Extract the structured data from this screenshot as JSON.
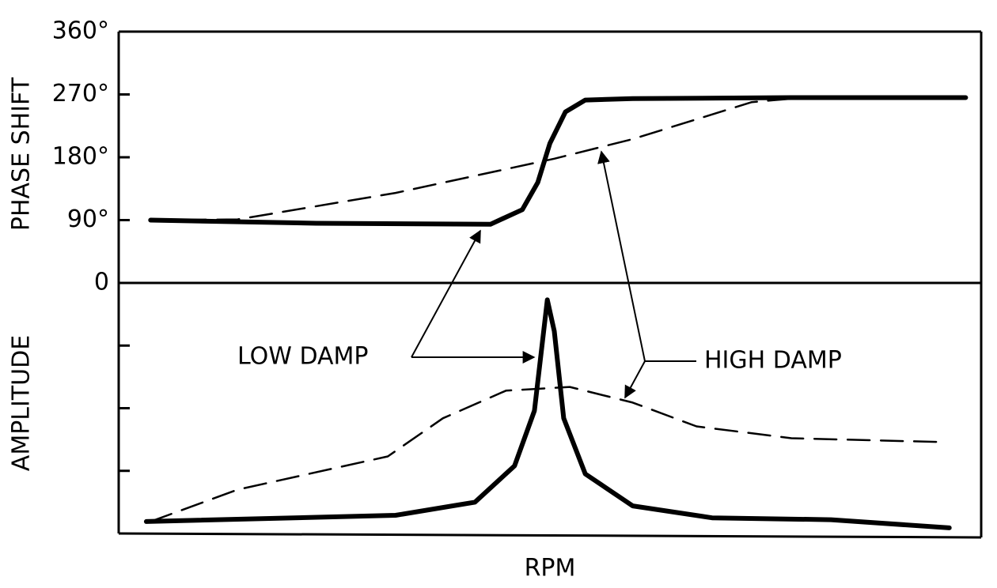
{
  "chart_data": [
    {
      "type": "line",
      "ylabel": "PHASE SHIFT",
      "xlim": [
        0,
        100
      ],
      "ylim": [
        0,
        360
      ],
      "yticks": [
        0,
        {
          "value": 90,
          "label": "90°"
        },
        {
          "value": 180,
          "label": "180°"
        },
        {
          "value": 270,
          "label": "270°"
        },
        {
          "value": 360,
          "label": "360°"
        }
      ],
      "ytick_labels": true,
      "series": [
        {
          "name": "LOW DAMP",
          "color": "#000000",
          "style": "solid",
          "x": [
            3.7,
            22.9,
            43.1,
            46.8,
            48.6,
            50,
            51.8,
            54.1,
            59.6,
            78,
            98.2
          ],
          "values": [
            90,
            85.5,
            84,
            105,
            144,
            200,
            245,
            262,
            264,
            265.5,
            265.5
          ]
        },
        {
          "name": "HIGH DAMP",
          "color": "#000000",
          "style": "dashed",
          "x": [
            3.7,
            13.8,
            32.1,
            50.5,
            59.6,
            73.4,
            78
          ],
          "values": [
            90,
            91,
            129,
            178,
            206,
            259,
            264
          ]
        }
      ]
    },
    {
      "type": "line",
      "ylabel": "AMPLITUDE",
      "xlabel": "RPM",
      "xlim": [
        0,
        100
      ],
      "ylim": [
        0,
        4
      ],
      "yticks": [
        1,
        2,
        3
      ],
      "ytick_labels": false,
      "series": [
        {
          "name": "LOW DAMP",
          "color": "#000000",
          "style": "solid",
          "x": [
            3.2,
            32.1,
            41.3,
            45.9,
            48.2,
            49.7,
            50.5,
            51.6,
            54.1,
            59.6,
            68.8,
            82.6,
            96.3
          ],
          "values": [
            0.19,
            0.29,
            0.5,
            1.08,
            1.96,
            3.73,
            3.23,
            1.84,
            0.95,
            0.44,
            0.25,
            0.22,
            0.09
          ]
        },
        {
          "name": "HIGH DAMP",
          "color": "#000000",
          "style": "dashed",
          "x": [
            3.7,
            13.8,
            31.2,
            37.6,
            44.9,
            52.3,
            59.6,
            67,
            78,
            95.4
          ],
          "values": [
            0.19,
            0.7,
            1.23,
            1.84,
            2.28,
            2.34,
            2.09,
            1.71,
            1.52,
            1.46
          ]
        }
      ]
    }
  ]
}
